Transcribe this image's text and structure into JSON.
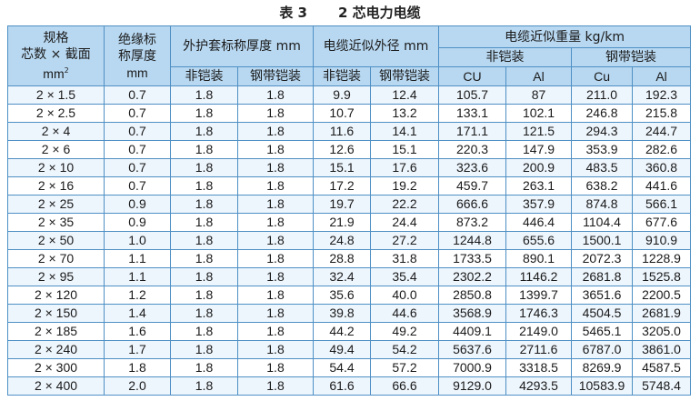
{
  "caption": {
    "label": "表 3",
    "title": "2 芯电力电缆"
  },
  "header": {
    "spec": {
      "line1": "规格",
      "line2": "芯数 × 截面",
      "line3": "mm",
      "sup": "2"
    },
    "insulation": {
      "line1": "绝缘标",
      "line2": "称厚度",
      "line3": "mm"
    },
    "sheath": "外护套标称厚度 mm",
    "diameter": "电缆近似外径 mm",
    "weight": "电缆近似重量 kg/km",
    "non_armored": "非铠装",
    "steel_armored": "钢带铠装",
    "cu": "CU",
    "al": "Al",
    "cu2": "Cu",
    "al2": "Al"
  },
  "rows": [
    [
      "2 × 1.5",
      "0.7",
      "1.8",
      "1.8",
      "9.9",
      "12.4",
      "105.7",
      "87",
      "211.0",
      "192.3"
    ],
    [
      "2 × 2.5",
      "0.7",
      "1.8",
      "1.8",
      "10.7",
      "13.2",
      "133.1",
      "102.1",
      "246.8",
      "215.8"
    ],
    [
      "2 × 4",
      "0.7",
      "1.8",
      "1.8",
      "11.6",
      "14.1",
      "171.1",
      "121.5",
      "294.3",
      "244.7"
    ],
    [
      "2 × 6",
      "0.7",
      "1.8",
      "1.8",
      "12.6",
      "15.1",
      "220.3",
      "147.9",
      "353.9",
      "282.6"
    ],
    [
      "2 × 10",
      "0.7",
      "1.8",
      "1.8",
      "15.1",
      "17.6",
      "323.6",
      "200.9",
      "483.5",
      "360.8"
    ],
    [
      "2 × 16",
      "0.7",
      "1.8",
      "1.8",
      "17.2",
      "19.2",
      "459.7",
      "263.1",
      "638.2",
      "441.6"
    ],
    [
      "2 × 25",
      "0.9",
      "1.8",
      "1.8",
      "19.7",
      "22.2",
      "666.6",
      "357.9",
      "874.8",
      "566.1"
    ],
    [
      "2 × 35",
      "0.9",
      "1.8",
      "1.8",
      "21.9",
      "24.4",
      "873.2",
      "446.4",
      "1104.4",
      "677.6"
    ],
    [
      "2 × 50",
      "1.0",
      "1.8",
      "1.8",
      "24.8",
      "27.2",
      "1244.8",
      "655.6",
      "1500.1",
      "910.9"
    ],
    [
      "2 × 70",
      "1.1",
      "1.8",
      "1.8",
      "28.8",
      "31.8",
      "1733.5",
      "890.1",
      "2072.3",
      "1228.9"
    ],
    [
      "2 × 95",
      "1.1",
      "1.8",
      "1.8",
      "32.4",
      "35.4",
      "2302.2",
      "1146.2",
      "2681.8",
      "1525.8"
    ],
    [
      "2 × 120",
      "1.2",
      "1.8",
      "1.8",
      "35.6",
      "40.0",
      "2850.8",
      "1399.7",
      "3651.6",
      "2200.5"
    ],
    [
      "2 × 150",
      "1.4",
      "1.8",
      "1.8",
      "39.8",
      "44.6",
      "3568.9",
      "1746.3",
      "4504.5",
      "2681.9"
    ],
    [
      "2 × 185",
      "1.6",
      "1.8",
      "1.8",
      "44.2",
      "49.2",
      "4409.1",
      "2149.0",
      "5465.1",
      "3205.0"
    ],
    [
      "2 × 240",
      "1.7",
      "1.8",
      "1.8",
      "49.4",
      "54.2",
      "5637.6",
      "2711.6",
      "6787.0",
      "3861.0"
    ],
    [
      "2 × 300",
      "1.8",
      "1.8",
      "1.8",
      "54.4",
      "57.2",
      "7000.9",
      "3318.5",
      "8269.9",
      "4587.5"
    ],
    [
      "2 × 400",
      "2.0",
      "1.8",
      "1.8",
      "61.6",
      "66.6",
      "9129.0",
      "4293.5",
      "10583.9",
      "5748.4"
    ]
  ],
  "colors": {
    "header_bg": "#b8d8f1",
    "border": "#4e8fc4",
    "stripe": "#eef6fd"
  }
}
